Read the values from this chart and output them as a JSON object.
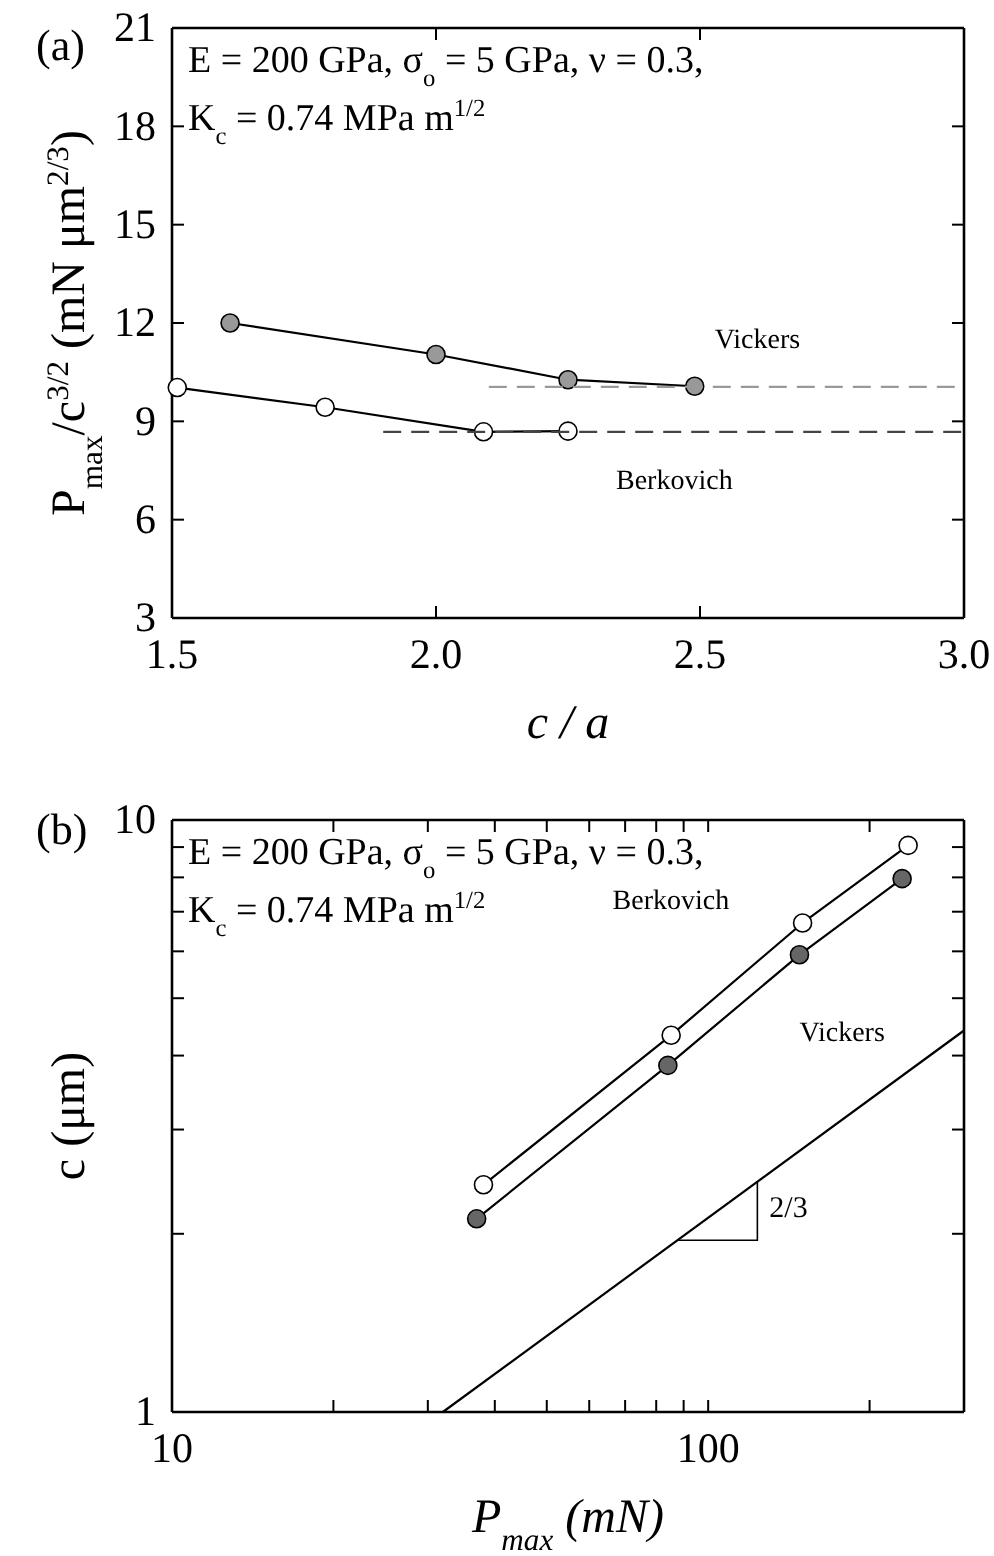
{
  "chart_data": [
    {
      "type": "line",
      "title": "(a)",
      "xlabel": "c / a",
      "ylabel": "P$_{max}$/c$^{3/2}$ (mN μm$^{2/3}$)",
      "xlim": [
        1.5,
        3.0
      ],
      "ylim": [
        3,
        21
      ],
      "xticks": [
        {
          "value": 1.5,
          "label": "1.5"
        },
        {
          "value": 2.0,
          "label": "2.0"
        },
        {
          "value": 2.5,
          "label": "2.5"
        },
        {
          "value": 3.0,
          "label": "3.0"
        }
      ],
      "yticks": [
        3,
        6,
        9,
        12,
        15,
        18,
        21
      ],
      "grid": false,
      "series": [
        {
          "name": "Vickers",
          "color": "#999999",
          "marker": "circle",
          "x": [
            1.61,
            2.0,
            2.25,
            2.49
          ],
          "values": [
            12.0,
            11.04,
            10.27,
            10.07
          ]
        },
        {
          "name": "Berkovich",
          "color": "#ffffff",
          "marker": "circle",
          "x": [
            1.51,
            1.79,
            2.09,
            2.25
          ],
          "values": [
            10.03,
            9.43,
            8.68,
            8.7
          ]
        },
        {
          "color": "#999999",
          "marker": "none",
          "line_style": "dashed",
          "x": [
            2.1,
            3.0
          ],
          "values": [
            10.05,
            10.05
          ]
        },
        {
          "color": "#444444",
          "marker": "none",
          "line_style": "dashed",
          "x": [
            1.9,
            3.0
          ],
          "values": [
            8.68,
            8.68
          ]
        }
      ],
      "annotations": [
        "E = 200 GPa, σ$_{o}$ = 5 GPa, ν = 0.3,",
        "K$_{c}$ = 0.74 MPa m$^{1/2}$"
      ]
    },
    {
      "type": "line",
      "title": "(b)",
      "xlabel": "P$_{max}$ (mN)",
      "ylabel": "c (μm)",
      "log": "xy",
      "xlim": [
        10,
        300
      ],
      "ylim": [
        1,
        10
      ],
      "xticks": [
        10,
        {
          "value": 20,
          "label": null
        },
        {
          "value": 30,
          "label": null
        },
        {
          "value": 40,
          "label": null
        },
        {
          "value": 50,
          "label": null
        },
        {
          "value": 60,
          "label": null
        },
        {
          "value": 70,
          "label": null
        },
        {
          "value": 80,
          "label": null
        },
        {
          "value": 90,
          "label": null
        },
        100,
        {
          "value": 200,
          "label": null
        },
        {
          "value": 300,
          "label": null
        }
      ],
      "yticks": [
        1,
        {
          "value": 2,
          "label": null
        },
        {
          "value": 3,
          "label": null
        },
        {
          "value": 4,
          "label": null
        },
        {
          "value": 5,
          "label": null
        },
        {
          "value": 6,
          "label": null
        },
        {
          "value": 7,
          "label": null
        },
        {
          "value": 8,
          "label": null
        },
        {
          "value": 9,
          "label": null
        },
        10
      ],
      "grid": false,
      "series": [
        {
          "name": "Berkovich",
          "color": "#ffffff",
          "marker": "circle",
          "x": [
            38.1,
            85.3,
            150,
            236
          ],
          "values": [
            2.42,
            4.33,
            6.7,
            9.06
          ]
        },
        {
          "name": "Vickers",
          "color": "#666666",
          "marker": "circle",
          "x": [
            37,
            84.1,
            148,
            230
          ],
          "values": [
            2.12,
            3.85,
            5.92,
            7.96
          ]
        },
        {
          "color": "#000000",
          "marker": "none",
          "x": [
            32,
            300
          ],
          "values": [
            1,
            4.41
          ]
        }
      ],
      "annotations": [
        "E = 200 GPa, σ$_{o}$ = 5 GPa, ν = 0.3,",
        "K$_{c}$ = 0.74 MPa m$^{1/2}$",
        "2/3"
      ]
    }
  ]
}
